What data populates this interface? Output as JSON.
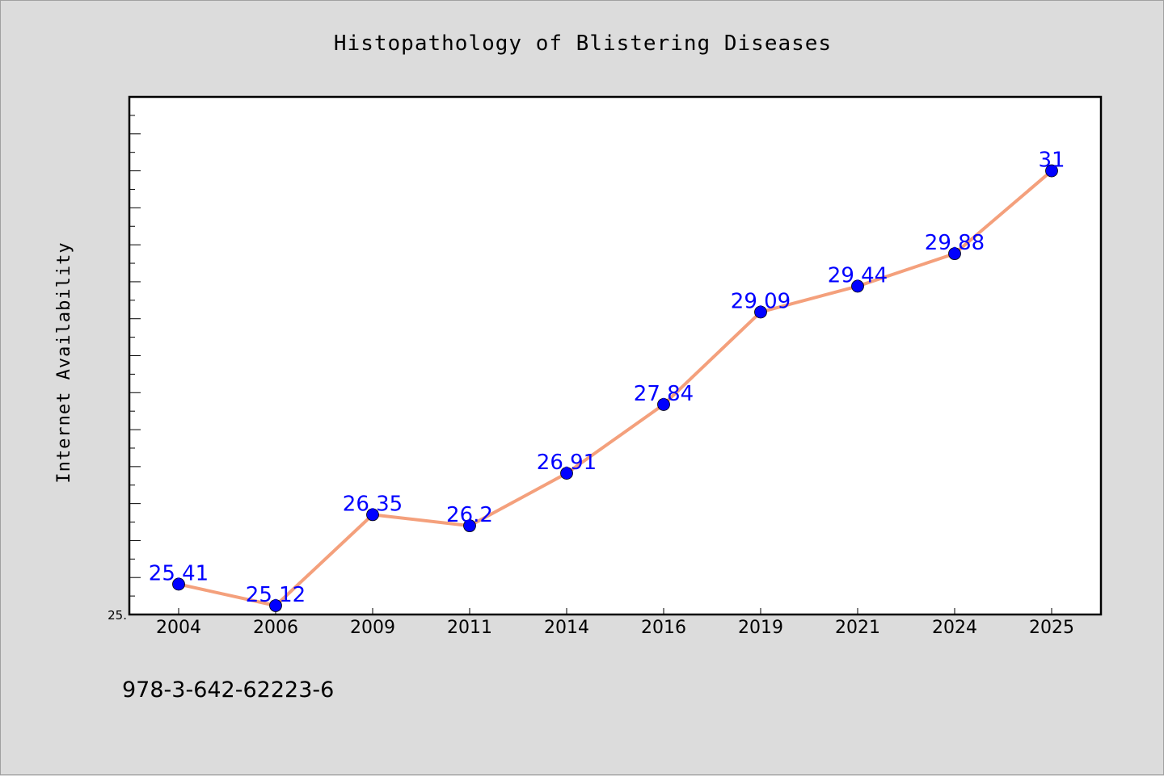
{
  "chart_data": {
    "type": "line",
    "title": "Histopathology of Blistering Diseases",
    "xlabel": "",
    "ylabel": "Internet Availability",
    "categories": [
      "2004",
      "2006",
      "2009",
      "2011",
      "2014",
      "2016",
      "2019",
      "2021",
      "2024",
      "2025"
    ],
    "series": [
      {
        "values": [
          25.41,
          25.12,
          26.35,
          26.2,
          26.91,
          27.84,
          29.09,
          29.44,
          29.88,
          31
        ],
        "data_labels": [
          "25.41",
          "25.12",
          "26.35",
          "26.2",
          "26.91",
          "27.84",
          "29.09",
          "29.44",
          "29.88",
          "31"
        ],
        "line_color": "#f4a07c",
        "marker_color": "#0000ff"
      }
    ],
    "ylim": [
      25,
      32
    ],
    "y_axis_visible_label": "25.",
    "grid": false,
    "legend": "none",
    "plot_background": "#ffffff",
    "figure_background": "#dcdcdc"
  },
  "footer_text": "978-3-642-62223-6"
}
